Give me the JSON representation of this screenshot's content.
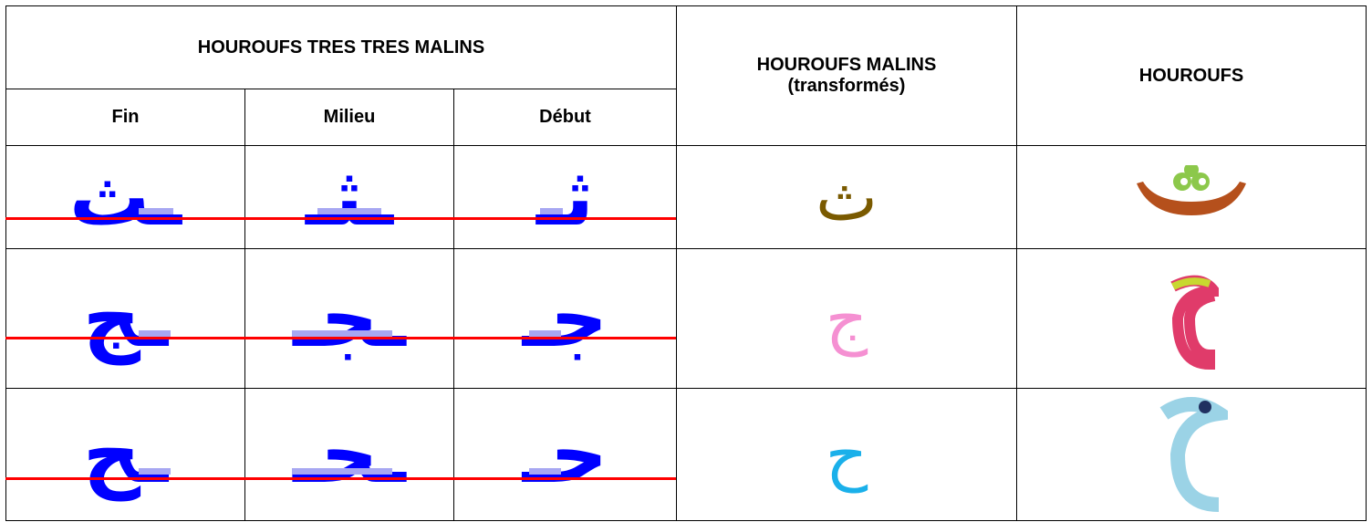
{
  "table": {
    "group_header": "HOUROUFS TRES TRES MALINS",
    "columns": [
      "Fin",
      "Milieu",
      "Début"
    ],
    "malins_header": [
      "HOUROUFS MALINS",
      "(transformés)"
    ],
    "hourouf_header": "HOUROUFS",
    "rows": [
      [
        "ـث",
        "ـثـ",
        "ثـ",
        "ث"
      ],
      [
        "ـج",
        "ـجـ",
        "جـ",
        "ج"
      ],
      [
        "ـح",
        "ـحـ",
        "حـ",
        "ح"
      ]
    ]
  }
}
